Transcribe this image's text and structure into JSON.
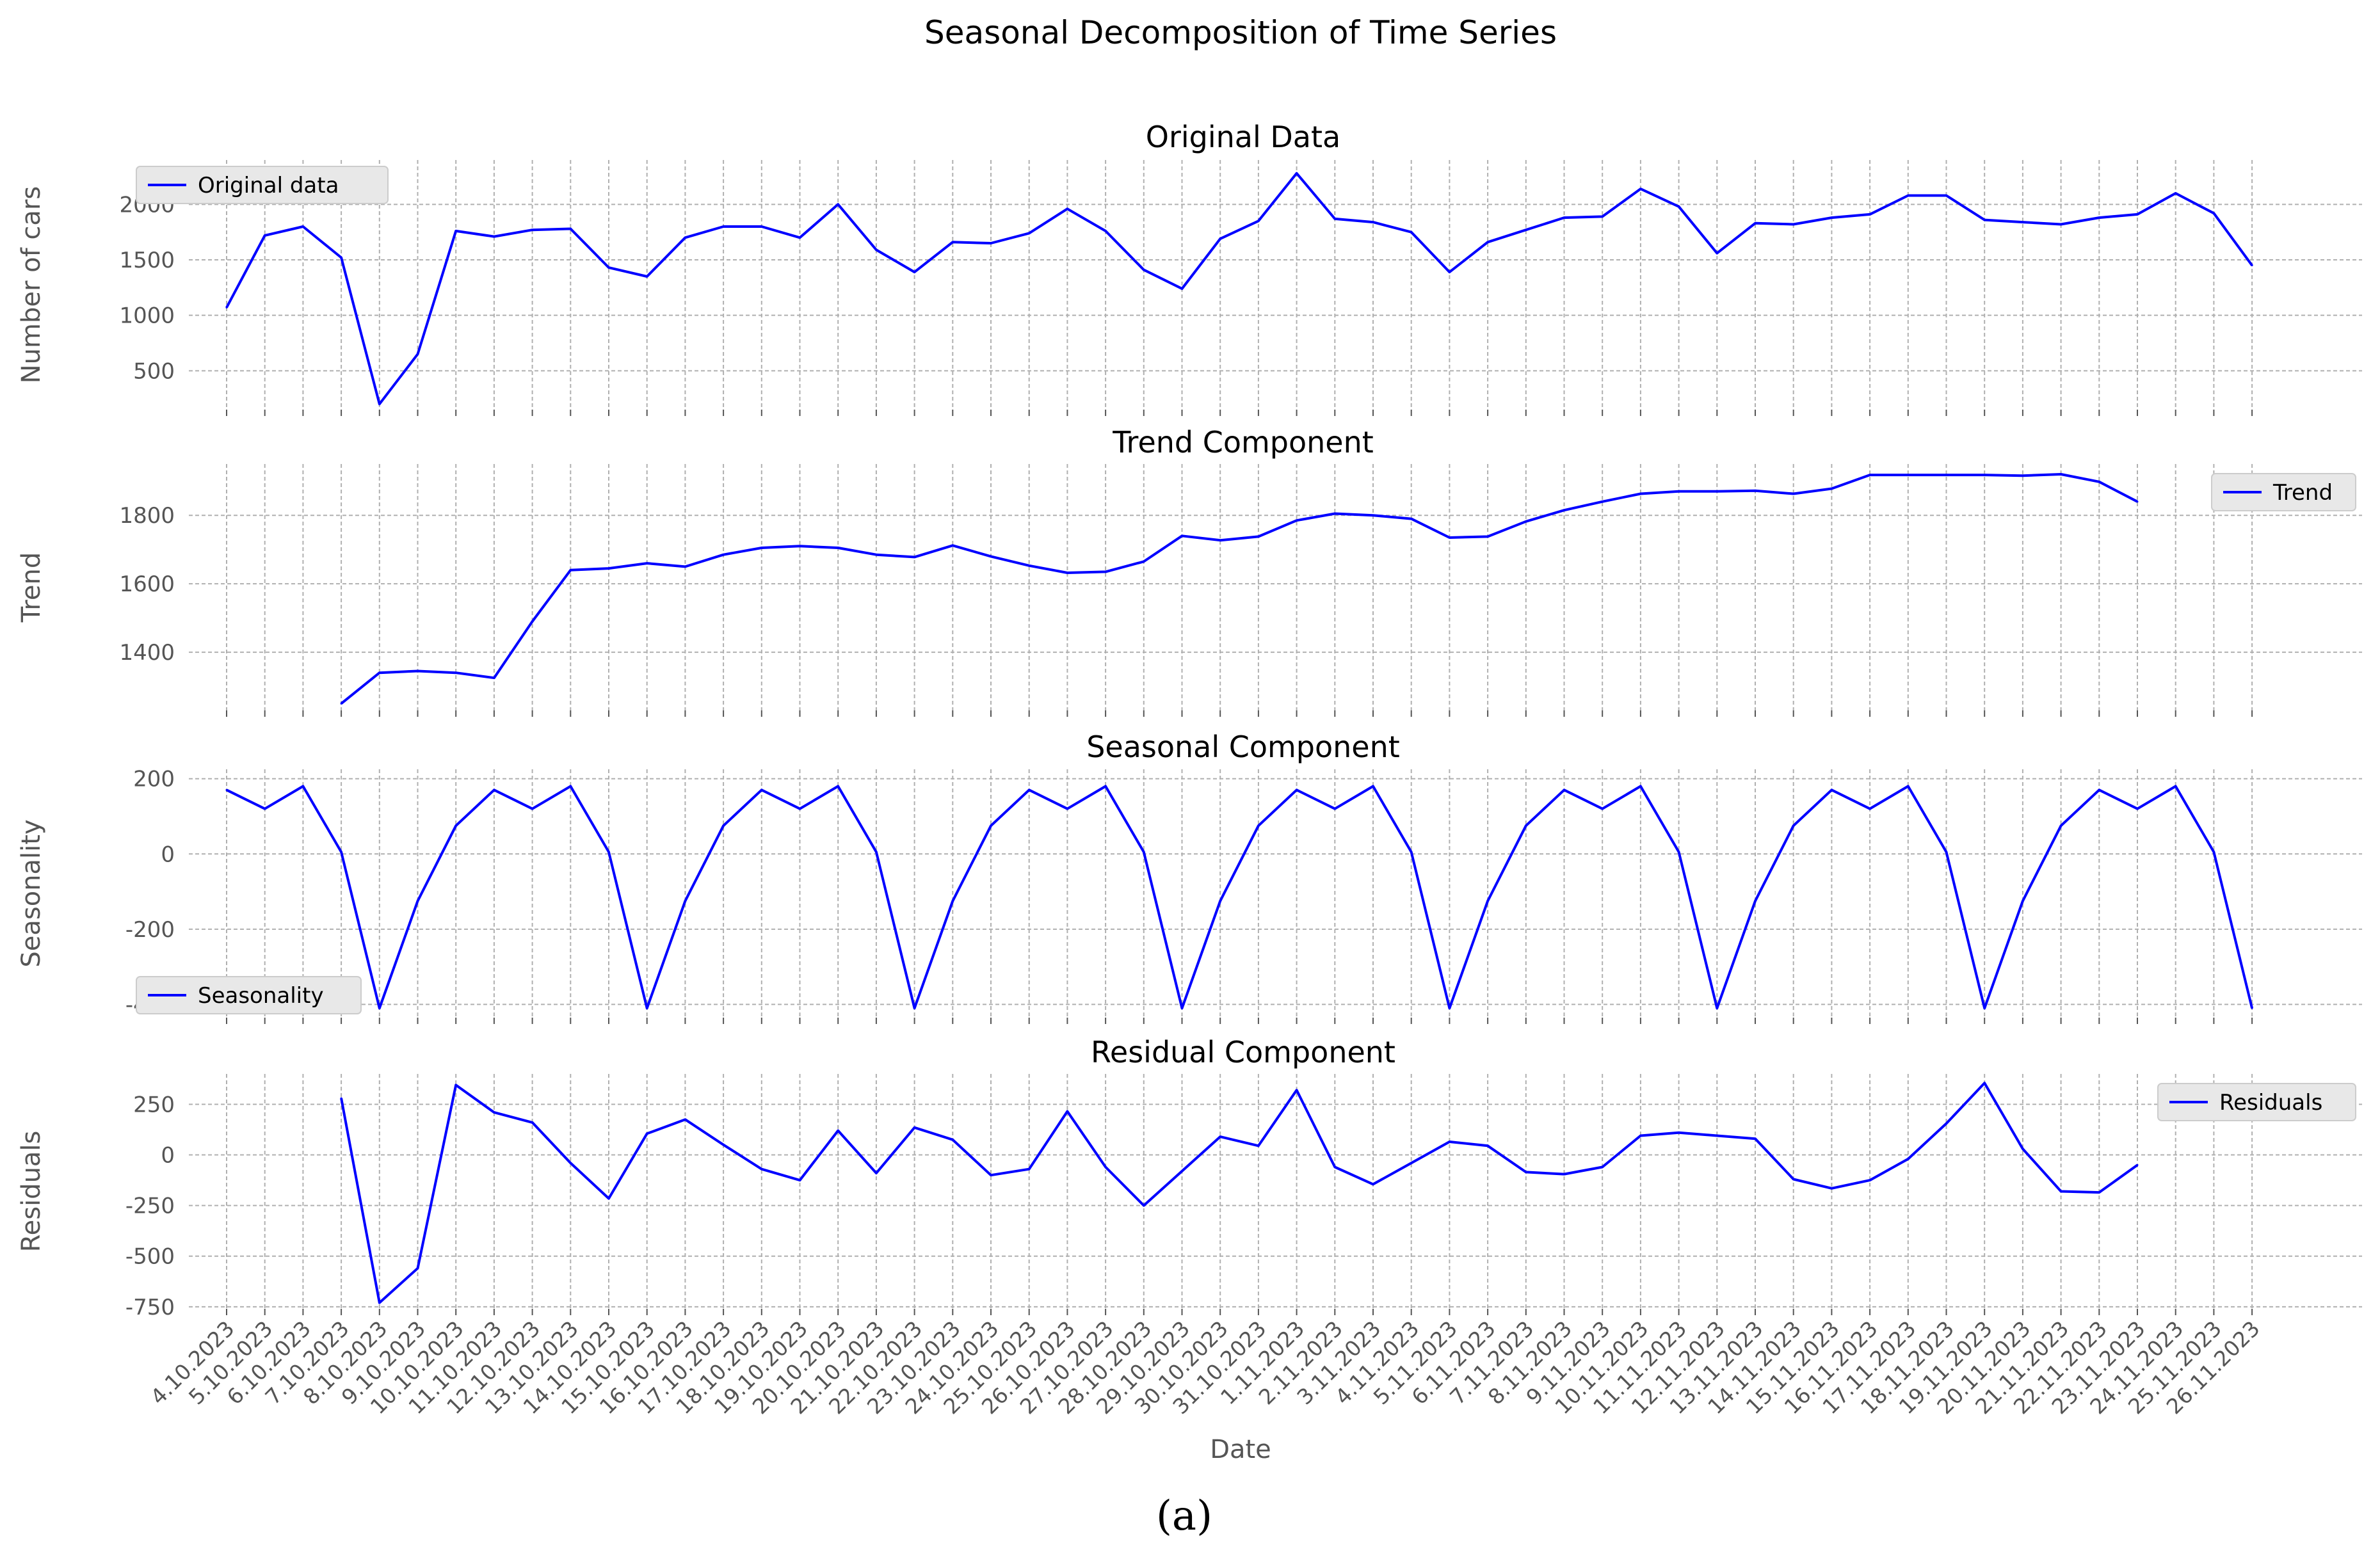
{
  "figure": {
    "suptitle": "Seasonal Decomposition of Time Series",
    "caption": "(a)",
    "xlabel": "Date",
    "line_color": "#0000ff"
  },
  "chart_data": [
    {
      "type": "line",
      "title": "Original Data",
      "ylabel": "Number of cars",
      "legend": "Original data",
      "legend_position": "upper-left",
      "ylim": [
        150,
        2400
      ],
      "yticks": [
        500,
        1000,
        1500,
        2000
      ],
      "series": [
        {
          "name": "Original data",
          "offset": 0,
          "values": [
            1070,
            1720,
            1800,
            1520,
            200,
            650,
            1760,
            1710,
            1770,
            1780,
            1430,
            1350,
            1700,
            1800,
            1800,
            1700,
            2000,
            1590,
            1390,
            1660,
            1650,
            1740,
            1960,
            1760,
            1410,
            1240,
            1690,
            1850,
            2280,
            1870,
            1840,
            1750,
            1390,
            1660,
            1770,
            1880,
            1890,
            2140,
            1980,
            1560,
            1830,
            1820,
            1880,
            1910,
            2080,
            2080,
            1860,
            1840,
            1820,
            1880,
            1910,
            2100,
            1920,
            1450
          ]
        }
      ]
    },
    {
      "type": "line",
      "title": "Trend Component",
      "ylabel": "Trend",
      "legend": "Trend",
      "legend_position": "upper-right",
      "ylim": [
        1230,
        1950
      ],
      "yticks": [
        1400,
        1600,
        1800
      ],
      "series": [
        {
          "name": "Trend",
          "offset": 3,
          "values": [
            1250,
            1340,
            1345,
            1340,
            1325,
            1490,
            1640,
            1645,
            1660,
            1650,
            1685,
            1705,
            1710,
            1705,
            1685,
            1678,
            1712,
            1680,
            1653,
            1632,
            1635,
            1665,
            1740,
            1727,
            1738,
            1785,
            1805,
            1800,
            1790,
            1735,
            1738,
            1782,
            1815,
            1840,
            1863,
            1870,
            1870,
            1872,
            1863,
            1878,
            1918,
            1918,
            1918,
            1918,
            1916,
            1920,
            1898,
            1840
          ]
        }
      ]
    },
    {
      "type": "line",
      "title": "Seasonal Component",
      "ylabel": "Seasonality",
      "legend": "Seasonality",
      "legend_position": "lower-left",
      "ylim": [
        -435,
        225
      ],
      "yticks": [
        -400,
        -200,
        0,
        200
      ],
      "series": [
        {
          "name": "Seasonality",
          "offset": 0,
          "values": [
            170,
            120,
            180,
            5,
            -410,
            -125,
            75,
            170,
            120,
            180,
            5,
            -410,
            -125,
            75,
            170,
            120,
            180,
            5,
            -410,
            -125,
            75,
            170,
            120,
            180,
            5,
            -410,
            -125,
            75,
            170,
            120,
            180,
            5,
            -410,
            -125,
            75,
            170,
            120,
            180,
            5,
            -410,
            -125,
            75,
            170,
            120,
            180,
            5,
            -410,
            -125,
            75,
            170,
            120,
            180,
            5,
            -410
          ]
        }
      ]
    },
    {
      "type": "line",
      "title": "Residual Component",
      "ylabel": "Residuals",
      "legend": "Residuals",
      "legend_position": "upper-right",
      "ylim": [
        -760,
        400
      ],
      "yticks": [
        -750,
        -500,
        -250,
        0,
        250
      ],
      "series": [
        {
          "name": "Residuals",
          "offset": 3,
          "values": [
            280,
            -730,
            -560,
            345,
            210,
            160,
            -40,
            -215,
            105,
            175,
            50,
            -70,
            -125,
            120,
            -90,
            135,
            75,
            -100,
            -70,
            215,
            -60,
            -250,
            -80,
            90,
            45,
            320,
            -60,
            -145,
            -40,
            65,
            45,
            -85,
            -95,
            -60,
            95,
            110,
            95,
            80,
            -120,
            -165,
            -125,
            -20,
            155,
            355,
            30,
            -180,
            -185,
            -50
          ]
        }
      ]
    }
  ],
  "x_labels": [
    "4.10.2023",
    "5.10.2023",
    "6.10.2023",
    "7.10.2023",
    "8.10.2023",
    "9.10.2023",
    "10.10.2023",
    "11.10.2023",
    "12.10.2023",
    "13.10.2023",
    "14.10.2023",
    "15.10.2023",
    "16.10.2023",
    "17.10.2023",
    "18.10.2023",
    "19.10.2023",
    "20.10.2023",
    "21.10.2023",
    "22.10.2023",
    "23.10.2023",
    "24.10.2023",
    "25.10.2023",
    "26.10.2023",
    "27.10.2023",
    "28.10.2023",
    "29.10.2023",
    "30.10.2023",
    "31.10.2023",
    "1.11.2023",
    "2.11.2023",
    "3.11.2023",
    "4.11.2023",
    "5.11.2023",
    "6.11.2023",
    "7.11.2023",
    "8.11.2023",
    "9.11.2023",
    "10.11.2023",
    "11.11.2023",
    "12.11.2023",
    "13.11.2023",
    "14.11.2023",
    "15.11.2023",
    "16.11.2023",
    "17.11.2023",
    "18.11.2023",
    "19.11.2023",
    "20.11.2023",
    "21.11.2023",
    "22.11.2023",
    "23.11.2023",
    "24.11.2023",
    "25.11.2023",
    "26.11.2023"
  ]
}
